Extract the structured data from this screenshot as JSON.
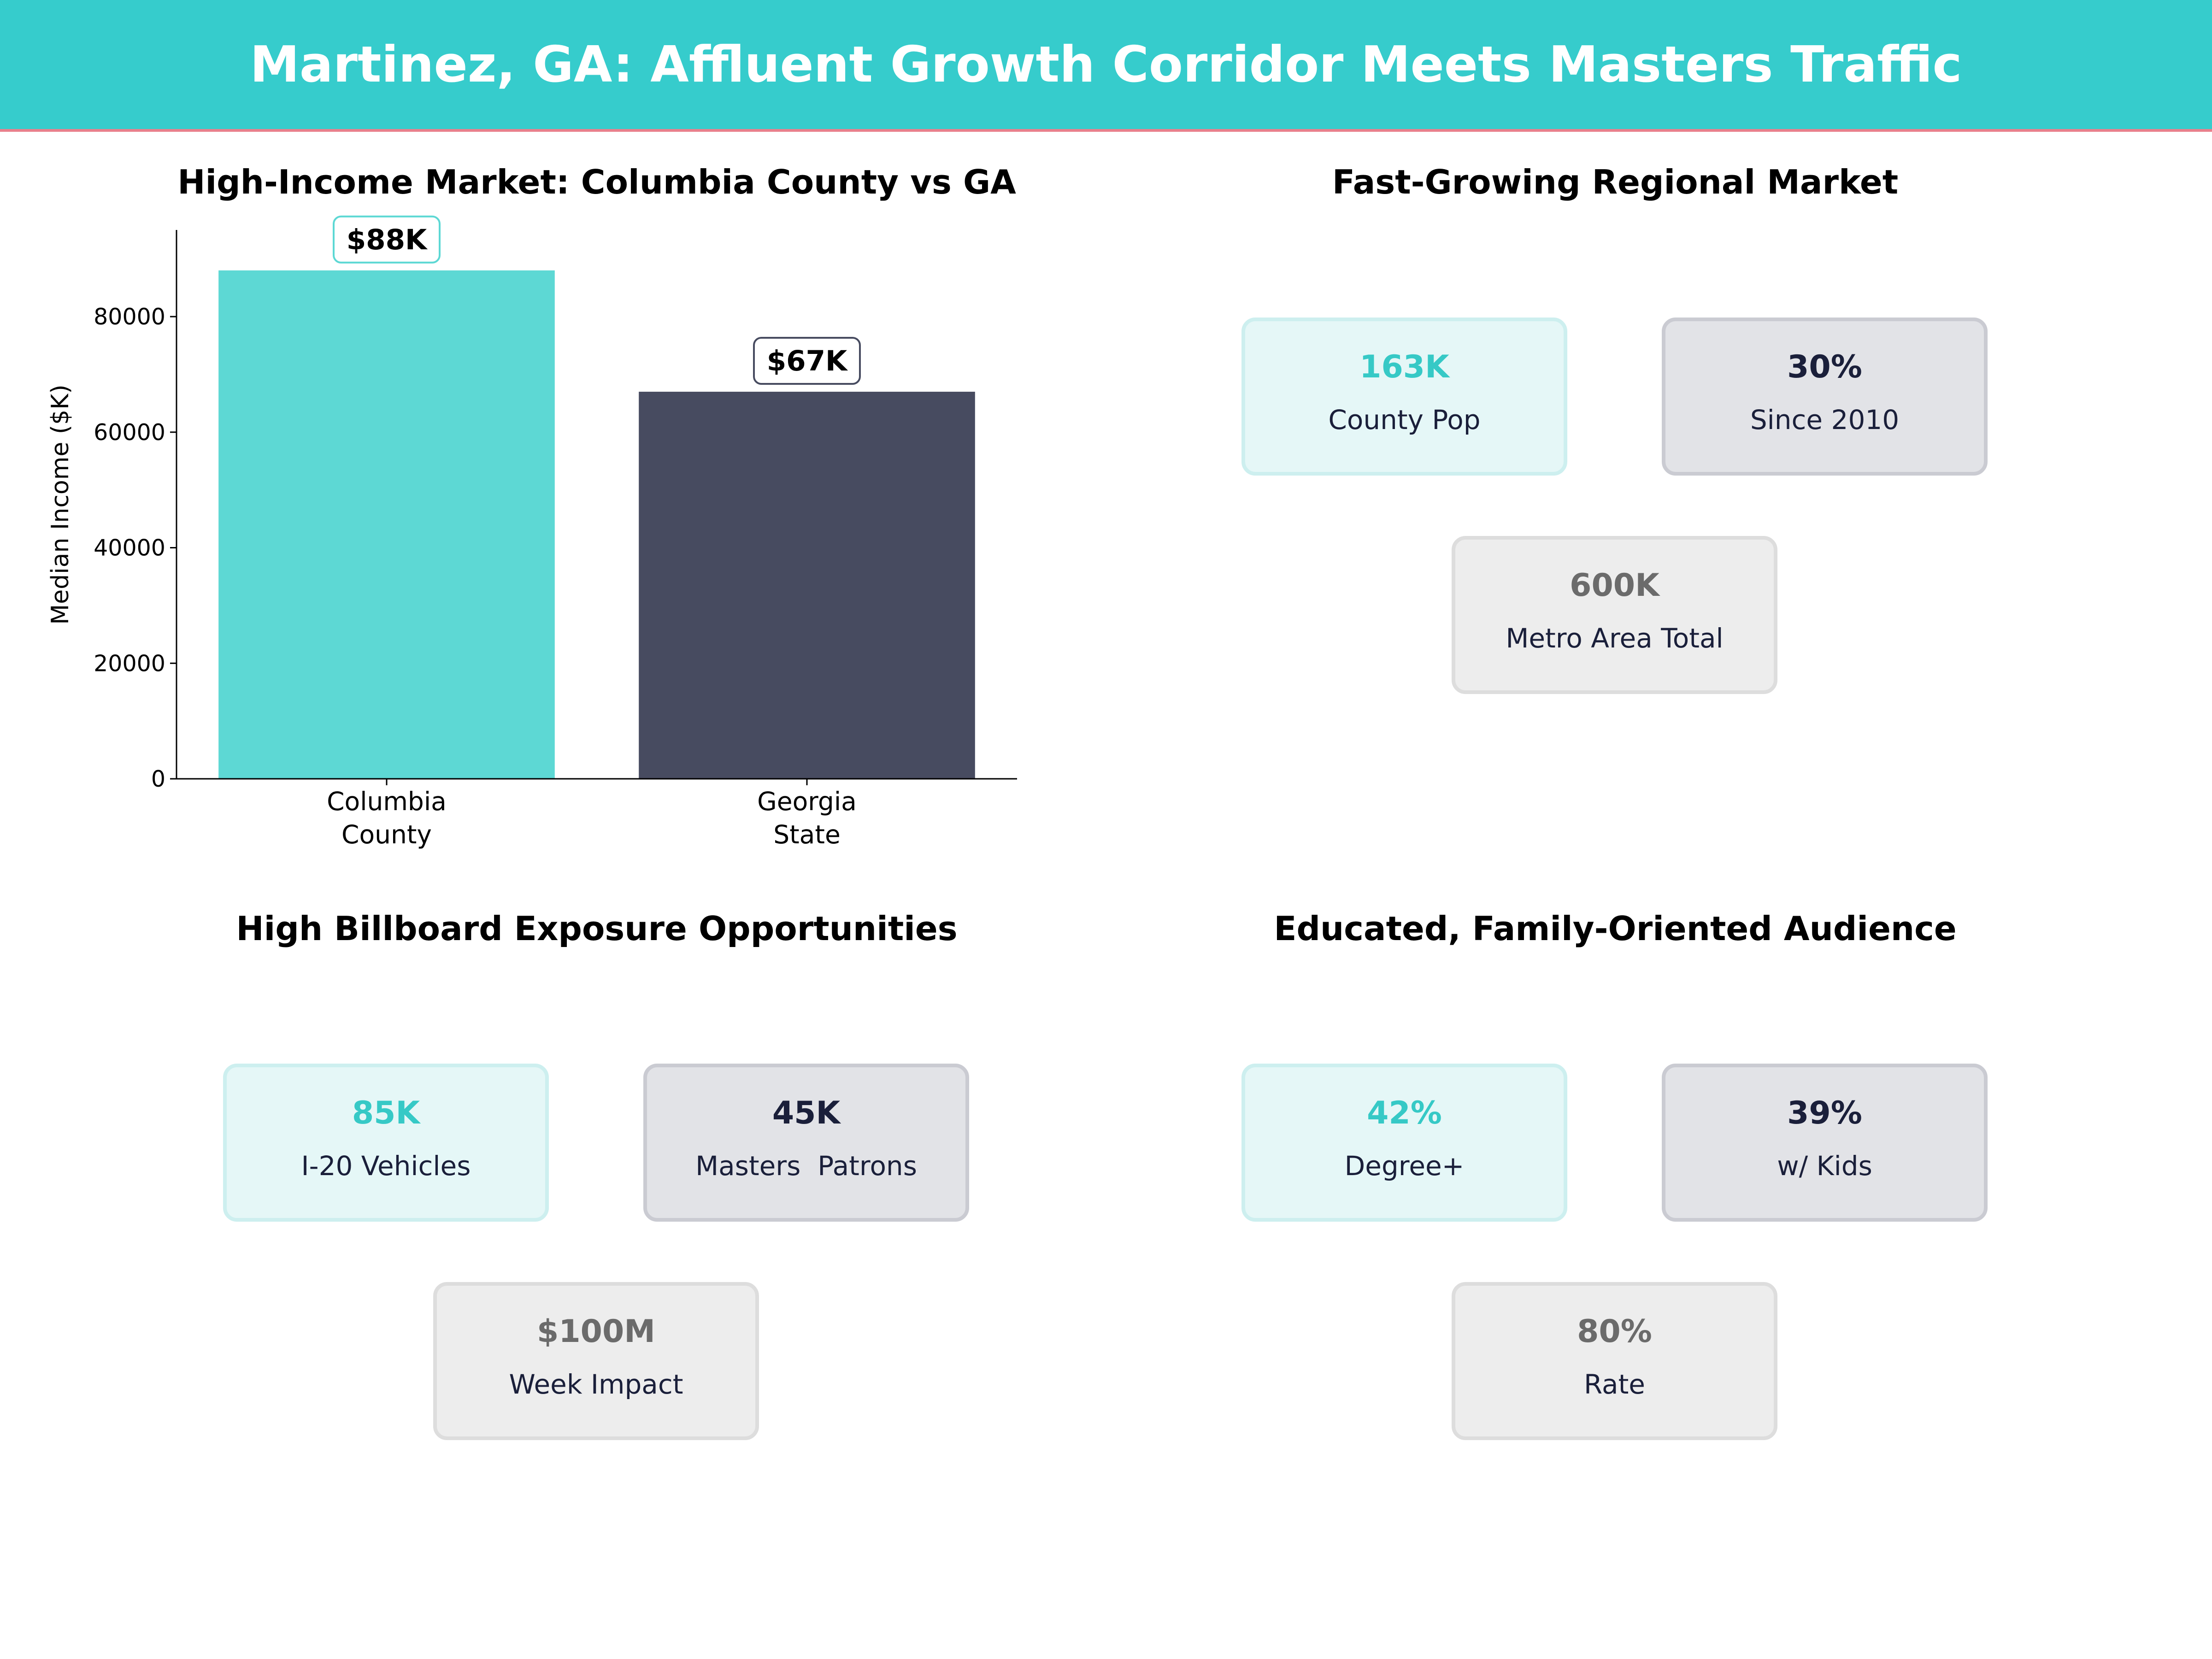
{
  "header": {
    "title": "Martinez, GA: Affluent Growth Corridor Meets Masters Traffic"
  },
  "chart_data": {
    "type": "bar",
    "title": "High-Income Market: Columbia County vs GA",
    "categories": [
      "Columbia\nCounty",
      "Georgia\nState"
    ],
    "values": [
      88000,
      67000
    ],
    "data_labels": [
      "$88K",
      "$67K"
    ],
    "colors": [
      "#5DD8D4",
      "#474B60"
    ],
    "xlabel": "",
    "ylabel": "Median Income ($K)",
    "ylim": [
      0,
      95000
    ],
    "yticks": [
      0,
      20000,
      40000,
      60000,
      80000
    ],
    "grid": false
  },
  "panels": {
    "growth": {
      "title": "Fast-Growing Regional Market",
      "cards": [
        {
          "value": "163K",
          "label": "County Pop"
        },
        {
          "value": "30%",
          "label": "Since 2010"
        },
        {
          "value": "600K",
          "label": "Metro Area Total"
        }
      ]
    },
    "billboard": {
      "title": "High Billboard Exposure Opportunities",
      "cards": [
        {
          "value": "85K",
          "label": "I-20 Vehicles"
        },
        {
          "value": "45K",
          "label": "Masters  Patrons"
        },
        {
          "value": "$100M",
          "label": "Week Impact"
        }
      ]
    },
    "audience": {
      "title": "Educated, Family-Oriented Audience",
      "cards": [
        {
          "value": "42%",
          "label": "Degree+"
        },
        {
          "value": "39%",
          "label": "w/ Kids"
        },
        {
          "value": "80%",
          "label": "Rate"
        }
      ]
    }
  }
}
